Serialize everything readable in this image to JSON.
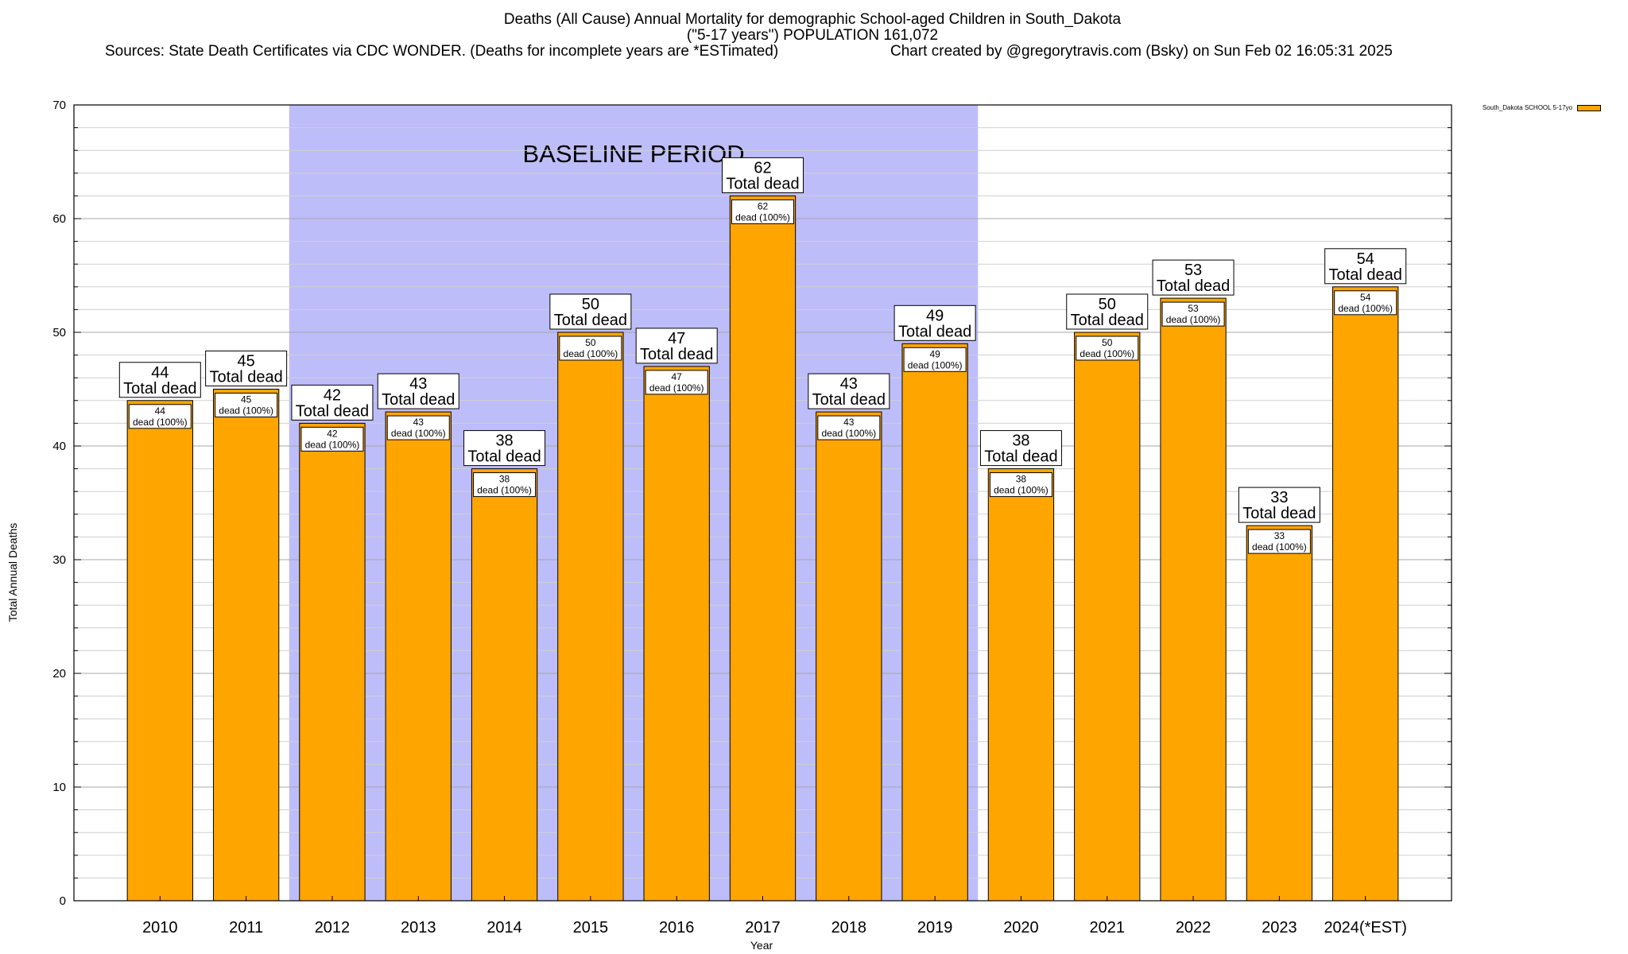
{
  "chart_data": {
    "type": "bar",
    "title_line_1": "Deaths (All Cause) Annual Mortality for demographic School-aged Children in South_Dakota",
    "title_line_2": "(\"5-17 years\") POPULATION 161,072",
    "sources": "Sources: State Death Certificates via CDC WONDER. (Deaths for incomplete years are *ESTimated)",
    "credit": "Chart created by @gregorytravis.com (Bsky) on Sun Feb 02 16:05:31 2025",
    "xlabel": "Year",
    "ylabel": "Total Annual Deaths",
    "ylim": [
      0,
      70
    ],
    "yticks": [
      0,
      10,
      20,
      30,
      40,
      50,
      60,
      70
    ],
    "minor_tick_step": 2,
    "categories": [
      "2010",
      "2011",
      "2012",
      "2013",
      "2014",
      "2015",
      "2016",
      "2017",
      "2018",
      "2019",
      "2020",
      "2021",
      "2022",
      "2023",
      "2024(*EST)"
    ],
    "series": [
      {
        "name": "South_Dakota SCHOOL 5-17yo",
        "color": "#ffa500",
        "values": [
          44,
          45,
          42,
          43,
          38,
          50,
          47,
          62,
          43,
          49,
          38,
          50,
          53,
          33,
          54
        ]
      }
    ],
    "total_label_suffix": "Total dead",
    "inner_label_suffix": "dead (100%)",
    "baseline_period": {
      "label": "BASELINE PERIOD",
      "start": "2012",
      "end": "2019",
      "color": "#bdbdfa"
    },
    "grid": true,
    "legend": "top-right"
  }
}
